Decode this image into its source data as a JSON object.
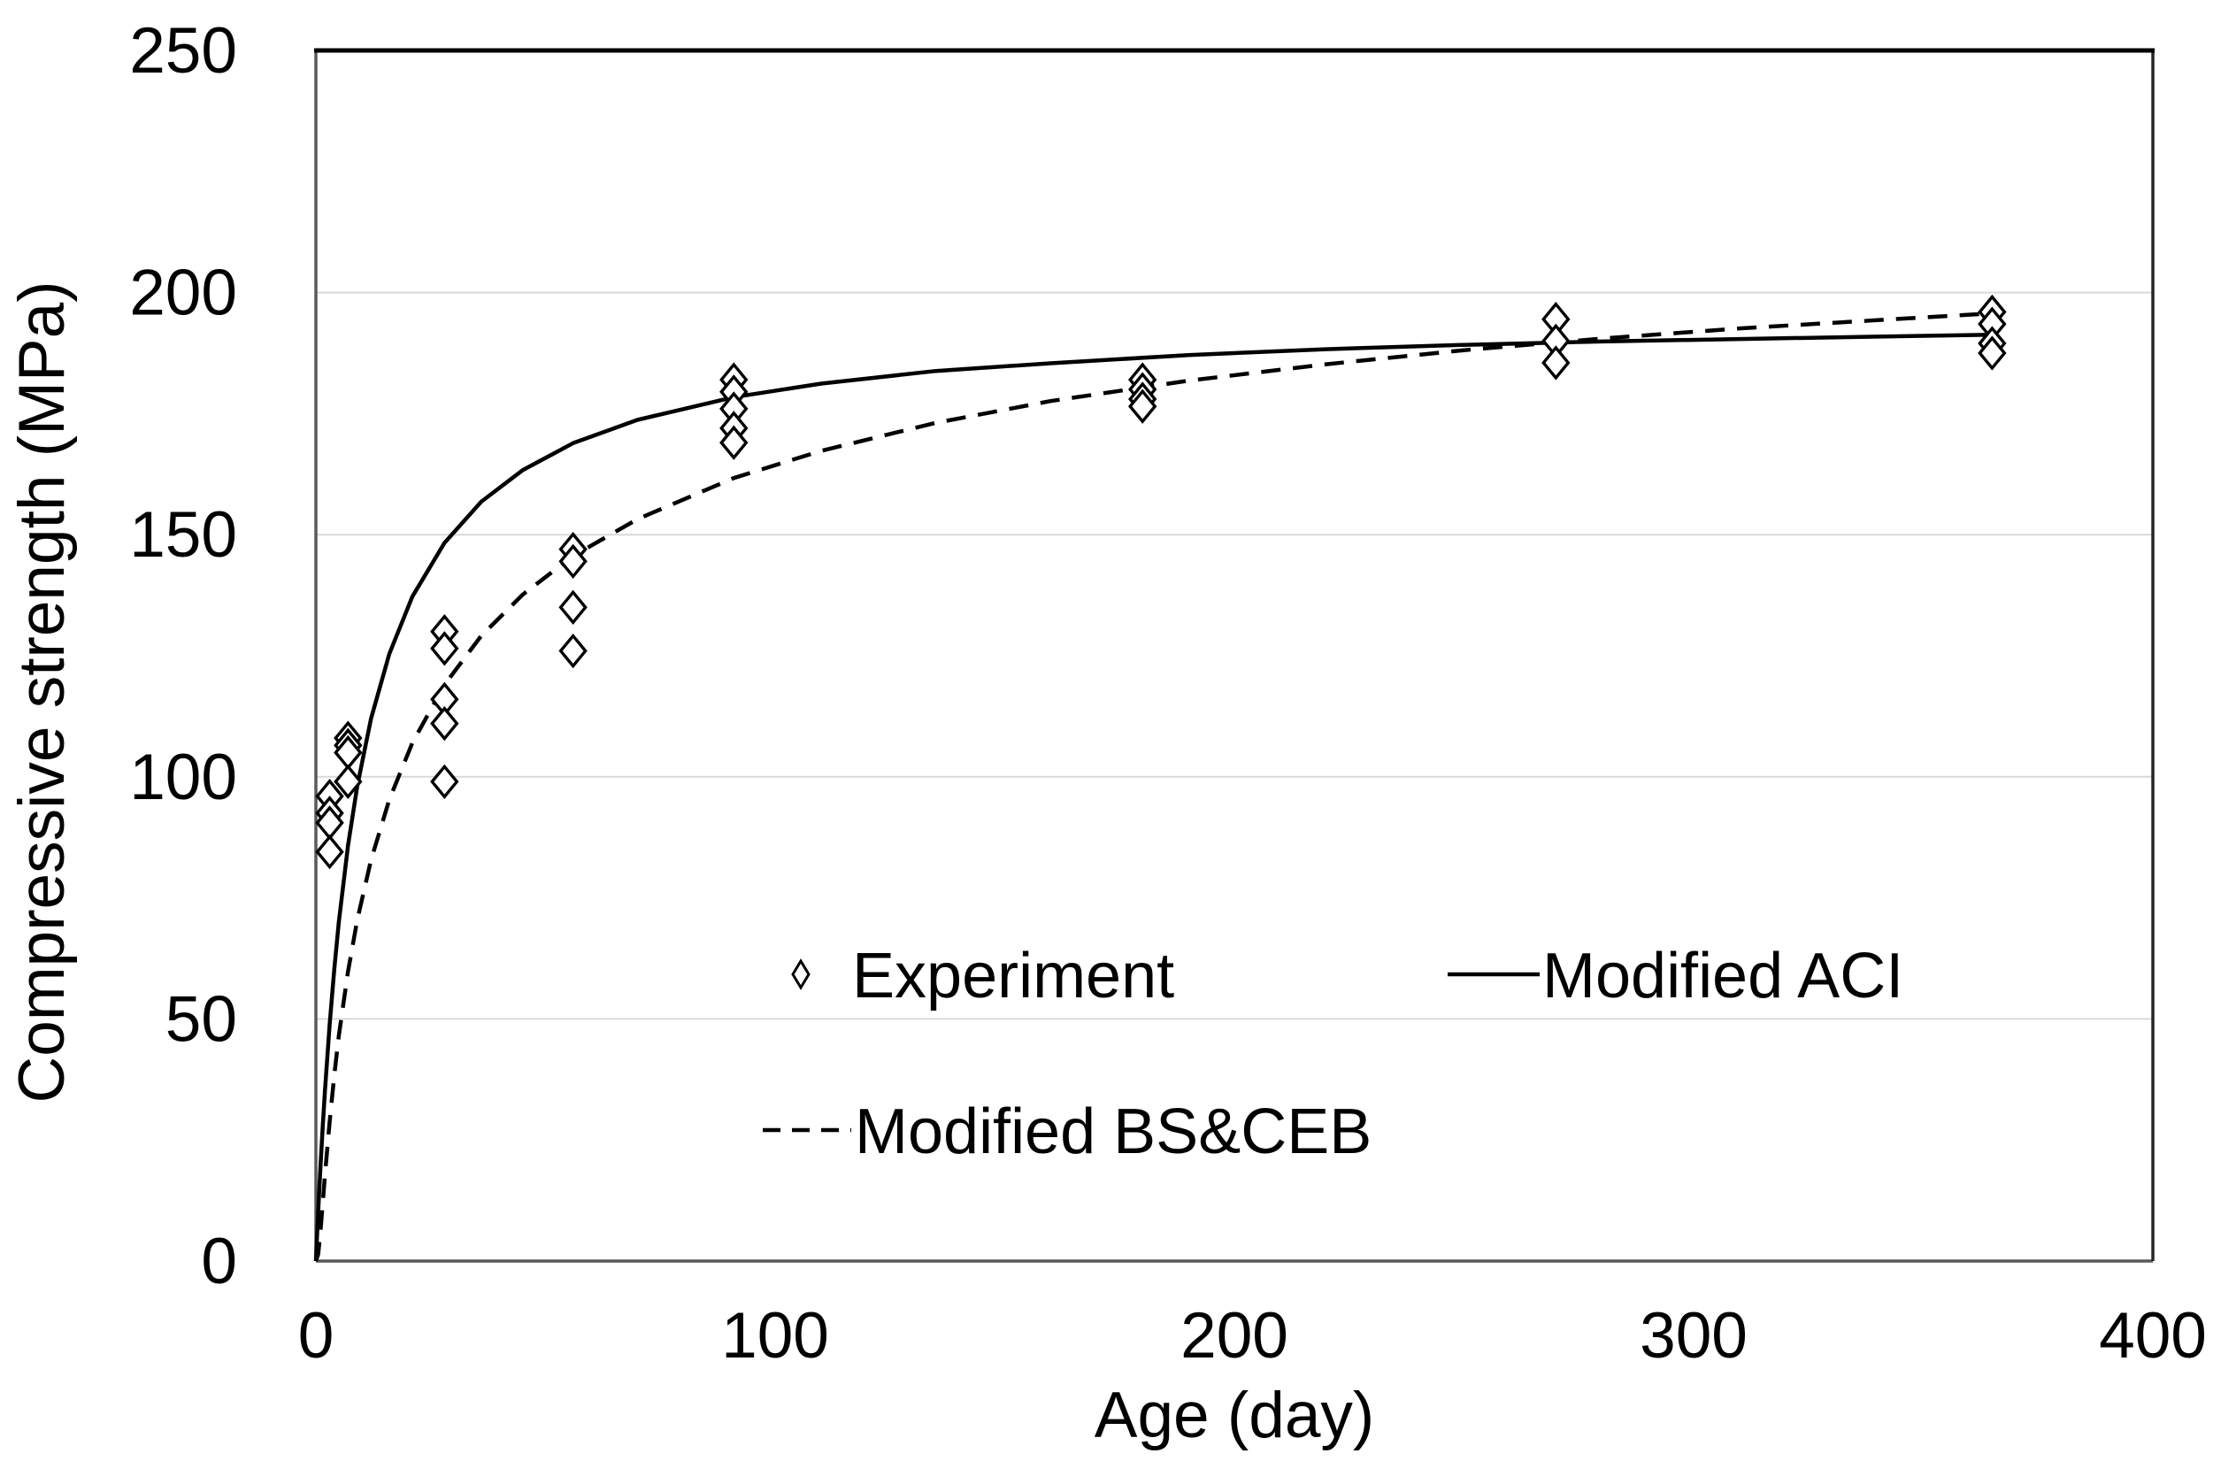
{
  "chart_data": {
    "type": "scatter",
    "title": "",
    "xlabel": "Age (day)",
    "ylabel": "Compressive strength (MPa)",
    "xlim": [
      0,
      400
    ],
    "ylim": [
      0,
      250
    ],
    "x_ticks": [
      0,
      100,
      200,
      300,
      400
    ],
    "y_ticks": [
      0,
      50,
      100,
      150,
      200,
      250
    ],
    "grid": "horizontal-only",
    "legend_position": "inside-bottom-center",
    "colors": {
      "series": "#000000",
      "gridline": "#d9d9d9",
      "axis": "#595959",
      "top_border": "#000000"
    },
    "series": [
      {
        "name": "Experiment",
        "type": "scatter",
        "marker": "open-diamond",
        "points": [
          [
            3,
            96
          ],
          [
            3,
            92.5
          ],
          [
            3,
            90.5
          ],
          [
            3,
            84.5
          ],
          [
            7,
            108
          ],
          [
            7,
            106.5
          ],
          [
            7,
            105
          ],
          [
            7,
            99
          ],
          [
            28,
            130
          ],
          [
            28,
            126.5
          ],
          [
            28,
            116
          ],
          [
            28,
            111
          ],
          [
            28,
            99
          ],
          [
            56,
            147
          ],
          [
            56,
            144.5
          ],
          [
            56,
            135
          ],
          [
            56,
            126
          ],
          [
            91,
            182
          ],
          [
            91,
            179.5
          ],
          [
            91,
            176
          ],
          [
            91,
            172
          ],
          [
            91,
            169
          ],
          [
            180,
            182
          ],
          [
            180,
            180
          ],
          [
            180,
            178
          ],
          [
            180,
            176.5
          ],
          [
            270,
            194.5
          ],
          [
            270,
            190
          ],
          [
            270,
            185.5
          ],
          [
            365,
            196
          ],
          [
            365,
            193.5
          ],
          [
            365,
            189.5
          ],
          [
            365,
            187.5
          ]
        ]
      },
      {
        "name": "Modified ACI",
        "type": "line",
        "style": "solid",
        "points": [
          [
            0,
            0
          ],
          [
            0.5,
            10.3
          ],
          [
            1,
            19.6
          ],
          [
            1.5,
            28
          ],
          [
            2,
            35.6
          ],
          [
            3,
            49
          ],
          [
            4,
            60.3
          ],
          [
            5,
            70
          ],
          [
            7,
            85.8
          ],
          [
            9,
            98
          ],
          [
            12,
            112
          ],
          [
            16,
            125.4
          ],
          [
            21,
            137.2
          ],
          [
            28,
            148.3
          ],
          [
            36,
            156.8
          ],
          [
            45,
            163.3
          ],
          [
            56,
            168.9
          ],
          [
            70,
            173.7
          ],
          [
            91,
            178.4
          ],
          [
            110,
            181.2
          ],
          [
            135,
            183.8
          ],
          [
            160,
            185.4
          ],
          [
            190,
            187.1
          ],
          [
            220,
            188.3
          ],
          [
            250,
            189.2
          ],
          [
            280,
            189.9
          ],
          [
            310,
            190.4
          ],
          [
            340,
            190.9
          ],
          [
            365,
            191.3
          ]
        ]
      },
      {
        "name": "Modified BS&CEB",
        "type": "line",
        "style": "dashed",
        "points": [
          [
            0,
            0
          ],
          [
            0.5,
            1.4
          ],
          [
            1,
            6.2
          ],
          [
            1.5,
            12.1
          ],
          [
            2,
            18.1
          ],
          [
            3,
            28.9
          ],
          [
            4,
            38.4
          ],
          [
            5,
            46.5
          ],
          [
            7,
            59.8
          ],
          [
            9,
            70.4
          ],
          [
            12,
            82.8
          ],
          [
            16,
            95.3
          ],
          [
            21,
            107
          ],
          [
            28,
            119
          ],
          [
            36,
            129.1
          ],
          [
            45,
            137.6
          ],
          [
            56,
            145.6
          ],
          [
            70,
            153.2
          ],
          [
            91,
            161.7
          ],
          [
            110,
            167.3
          ],
          [
            135,
            173.1
          ],
          [
            160,
            177.6
          ],
          [
            190,
            181.8
          ],
          [
            220,
            185.2
          ],
          [
            250,
            188.1
          ],
          [
            280,
            190.5
          ],
          [
            310,
            192.6
          ],
          [
            340,
            194.3
          ],
          [
            365,
            195.7
          ]
        ]
      }
    ]
  },
  "axes": {
    "x_title": "Age (day)",
    "y_title": "Compressive strength (MPa)"
  },
  "legend": {
    "experiment": "Experiment",
    "aci": "Modified ACI",
    "bsceb": "Modified BS&CEB"
  }
}
